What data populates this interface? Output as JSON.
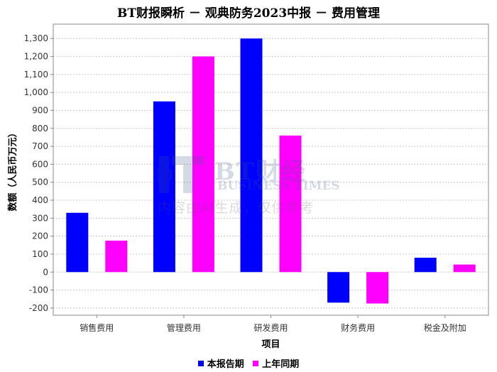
{
  "chart_data": {
    "type": "bar",
    "title": "BT财报瞬析 － 观典防务2023中报 － 费用管理",
    "xlabel": "项目",
    "ylabel": "数额（人民币万元）",
    "categories": [
      "销售费用",
      "管理费用",
      "研发费用",
      "财务费用",
      "税金及附加"
    ],
    "series": [
      {
        "name": "本报告期",
        "color": "#0000ff",
        "values": [
          330,
          950,
          1300,
          -170,
          80
        ]
      },
      {
        "name": "上年同期",
        "color": "#ff00ff",
        "values": [
          175,
          1200,
          760,
          -175,
          42
        ]
      }
    ],
    "ylim": [
      -240,
      1380
    ],
    "yticks": [
      -200,
      -100,
      0,
      100,
      200,
      300,
      400,
      500,
      600,
      700,
      800,
      900,
      1000,
      1100,
      1200,
      1300
    ],
    "ytick_labels": [
      "-200",
      "-100",
      "0",
      "100",
      "200",
      "300",
      "400",
      "500",
      "600",
      "700",
      "800",
      "900",
      "1,000",
      "1,100",
      "1,200",
      "1,300"
    ],
    "grid": true,
    "legend_position": "bottom"
  },
  "watermark": {
    "brand_cn": "BT财经",
    "brand_en": "BUSINESS TIMES",
    "note": "内容由AI生成，仅供参考"
  }
}
